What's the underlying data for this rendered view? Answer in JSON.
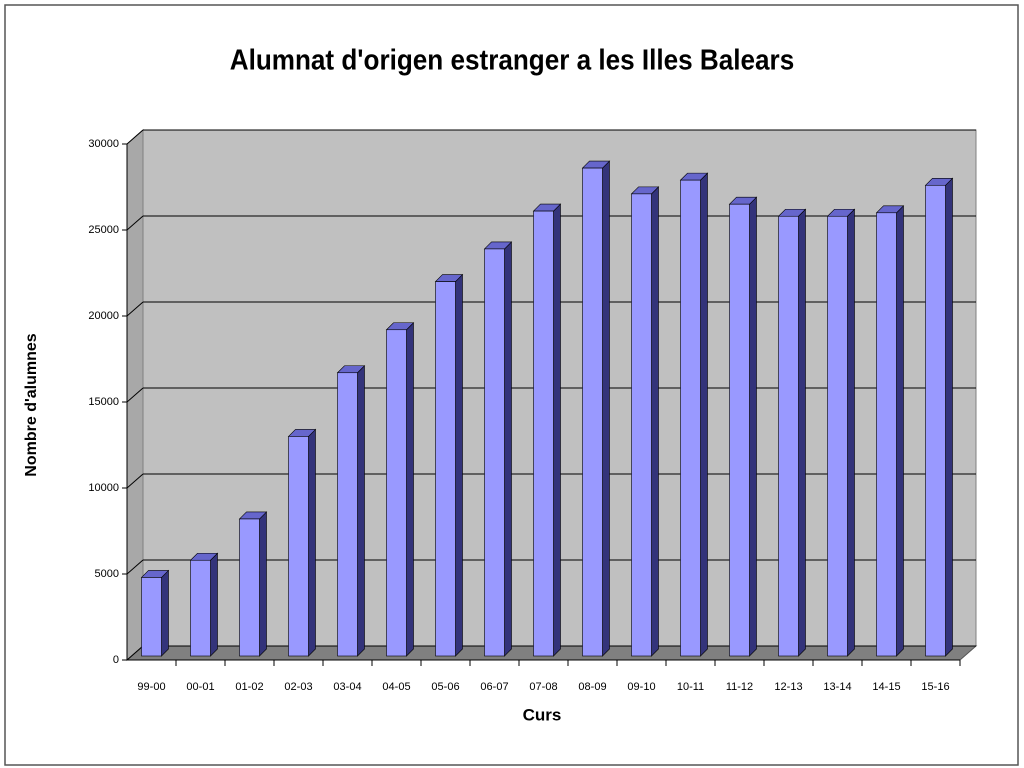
{
  "chart_data": {
    "type": "bar3d",
    "title": "Alumnat d'origen estranger a les Illes Balears",
    "x_label": "Curs",
    "y_label": "Nombre d'alumnes",
    "categories": [
      "99-00",
      "00-01",
      "01-02",
      "02-03",
      "03-04",
      "04-05",
      "05-06",
      "06-07",
      "07-08",
      "08-09",
      "09-10",
      "10-11",
      "11-12",
      "12-13",
      "13-14",
      "14-15",
      "15-16"
    ],
    "values": [
      4800,
      5800,
      8200,
      13000,
      16700,
      19200,
      22000,
      23900,
      26100,
      28600,
      27100,
      27900,
      26500,
      25800,
      25800,
      26000,
      27600
    ],
    "color": "#9999ff",
    "ylim": [
      0,
      30000
    ],
    "yticks": [
      0,
      5000,
      10000,
      15000,
      20000,
      25000,
      30000
    ],
    "grid": true
  }
}
